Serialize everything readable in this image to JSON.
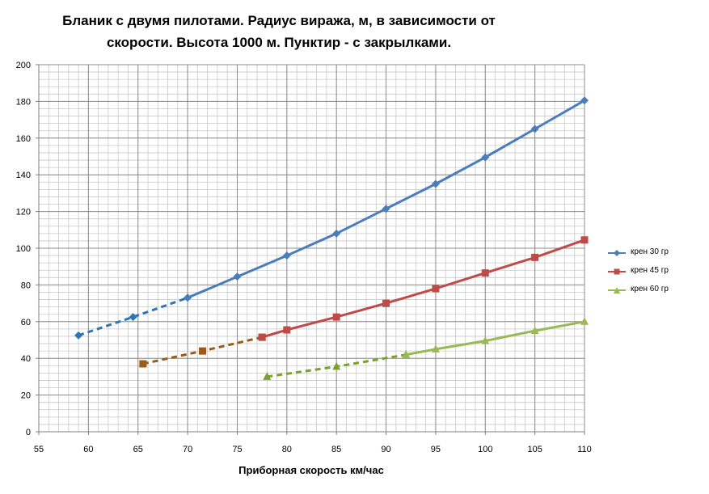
{
  "chart_data": {
    "type": "line",
    "title_line1": "Бланик с двумя пилотами. Радиус виража, м, в зависимости от",
    "title_line2": "скорости. Высота 1000 м. Пунктир - с закрылками.",
    "xlabel": "Приборная скорость км/час",
    "ylabel": "",
    "xlim": [
      55,
      110
    ],
    "ylim": [
      0,
      200
    ],
    "xticks": [
      55,
      60,
      65,
      70,
      75,
      80,
      85,
      90,
      95,
      100,
      105,
      110
    ],
    "yticks": [
      0,
      20,
      40,
      60,
      80,
      100,
      120,
      140,
      160,
      180,
      200
    ],
    "grid": true,
    "legend_position": "right",
    "series": [
      {
        "name": "крен 30 гр",
        "color": "#4a7ebb",
        "marker": "diamond",
        "dashed_points": [
          [
            59,
            52.5
          ],
          [
            64.5,
            62.5
          ],
          [
            70,
            73
          ]
        ],
        "solid_points": [
          [
            70,
            73
          ],
          [
            75,
            84.5
          ],
          [
            80,
            96
          ],
          [
            85,
            108
          ],
          [
            90,
            121.5
          ],
          [
            95,
            135
          ],
          [
            100,
            149.5
          ],
          [
            105,
            165
          ],
          [
            110,
            180.5
          ]
        ],
        "dashed_color": "#2e75b6"
      },
      {
        "name": "крен 45 гр",
        "color": "#be4b48",
        "marker": "square",
        "dashed_points": [
          [
            65.5,
            37
          ],
          [
            71.5,
            44
          ],
          [
            77.5,
            51.5
          ]
        ],
        "solid_points": [
          [
            77.5,
            51.5
          ],
          [
            80,
            55.5
          ],
          [
            85,
            62.5
          ],
          [
            90,
            70
          ],
          [
            95,
            78
          ],
          [
            100,
            86.5
          ],
          [
            105,
            95
          ],
          [
            110,
            104.5
          ]
        ],
        "dashed_color": "#9c5a1a"
      },
      {
        "name": "крен 60 гр",
        "color": "#98b954",
        "marker": "triangle",
        "dashed_points": [
          [
            78,
            30
          ],
          [
            85,
            35.5
          ],
          [
            92,
            42
          ]
        ],
        "solid_points": [
          [
            92,
            42
          ],
          [
            95,
            45
          ],
          [
            100,
            49.5
          ],
          [
            105,
            55
          ],
          [
            110,
            60
          ]
        ],
        "dashed_color": "#7aa02d"
      }
    ]
  }
}
